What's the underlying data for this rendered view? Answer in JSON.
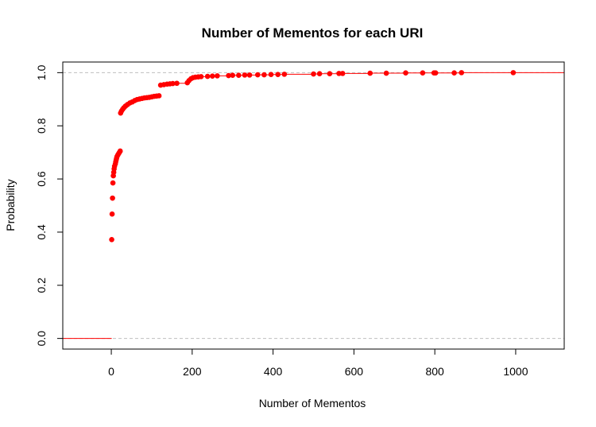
{
  "chart_data": {
    "type": "scatter",
    "title": "Number of Mementos for each URI",
    "xlabel": "Number of Mementos",
    "ylabel": "Probability",
    "xlim": [
      -120,
      1120
    ],
    "ylim": [
      -0.04,
      1.04
    ],
    "x_ticks": [
      0,
      200,
      400,
      600,
      800,
      1000
    ],
    "x_tick_labels": [
      "0",
      "200",
      "400",
      "600",
      "800",
      "1000"
    ],
    "y_ticks": [
      0.0,
      0.2,
      0.4,
      0.6,
      0.8,
      1.0
    ],
    "y_tick_labels": [
      "0.0",
      "0.2",
      "0.4",
      "0.6",
      "0.8",
      "1.0"
    ],
    "reference_lines": [
      0,
      1
    ],
    "colors": {
      "points": "#ff0000",
      "reference_line": "#bebebe",
      "axis": "#000000"
    },
    "grid": false,
    "series": [
      {
        "points": [
          [
            1,
            0.372
          ],
          [
            2,
            0.468
          ],
          [
            3,
            0.528
          ],
          [
            4,
            0.585
          ],
          [
            5,
            0.612
          ],
          [
            6,
            0.625
          ],
          [
            7,
            0.638
          ],
          [
            8,
            0.648
          ],
          [
            10,
            0.657
          ],
          [
            11,
            0.665
          ],
          [
            12,
            0.672
          ],
          [
            13,
            0.678
          ],
          [
            14,
            0.684
          ],
          [
            16,
            0.69
          ],
          [
            18,
            0.695
          ],
          [
            20,
            0.7
          ],
          [
            22,
            0.705
          ],
          [
            23,
            0.848
          ],
          [
            25,
            0.855
          ],
          [
            28,
            0.862
          ],
          [
            31,
            0.868
          ],
          [
            35,
            0.874
          ],
          [
            40,
            0.88
          ],
          [
            46,
            0.886
          ],
          [
            52,
            0.89
          ],
          [
            58,
            0.895
          ],
          [
            64,
            0.899
          ],
          [
            70,
            0.901
          ],
          [
            76,
            0.903
          ],
          [
            82,
            0.905
          ],
          [
            88,
            0.906
          ],
          [
            94,
            0.907
          ],
          [
            100,
            0.909
          ],
          [
            106,
            0.911
          ],
          [
            112,
            0.912
          ],
          [
            118,
            0.913
          ],
          [
            122,
            0.953
          ],
          [
            130,
            0.955
          ],
          [
            138,
            0.957
          ],
          [
            145,
            0.958
          ],
          [
            152,
            0.959
          ],
          [
            162,
            0.96
          ],
          [
            188,
            0.962
          ],
          [
            192,
            0.97
          ],
          [
            197,
            0.977
          ],
          [
            202,
            0.981
          ],
          [
            208,
            0.983
          ],
          [
            215,
            0.984
          ],
          [
            222,
            0.985
          ],
          [
            238,
            0.986
          ],
          [
            250,
            0.987
          ],
          [
            262,
            0.988
          ],
          [
            290,
            0.989
          ],
          [
            300,
            0.99
          ],
          [
            315,
            0.99
          ],
          [
            330,
            0.991
          ],
          [
            342,
            0.991
          ],
          [
            362,
            0.992
          ],
          [
            378,
            0.992
          ],
          [
            395,
            0.993
          ],
          [
            412,
            0.993
          ],
          [
            428,
            0.994
          ],
          [
            500,
            0.995
          ],
          [
            515,
            0.996
          ],
          [
            540,
            0.996
          ],
          [
            563,
            0.997
          ],
          [
            572,
            0.997
          ],
          [
            640,
            0.998
          ],
          [
            680,
            0.998
          ],
          [
            728,
            0.999
          ],
          [
            770,
            0.999
          ],
          [
            798,
            0.999
          ],
          [
            802,
            0.999
          ],
          [
            848,
            0.999
          ],
          [
            866,
            1.0
          ],
          [
            994,
            1.0
          ]
        ]
      }
    ]
  }
}
